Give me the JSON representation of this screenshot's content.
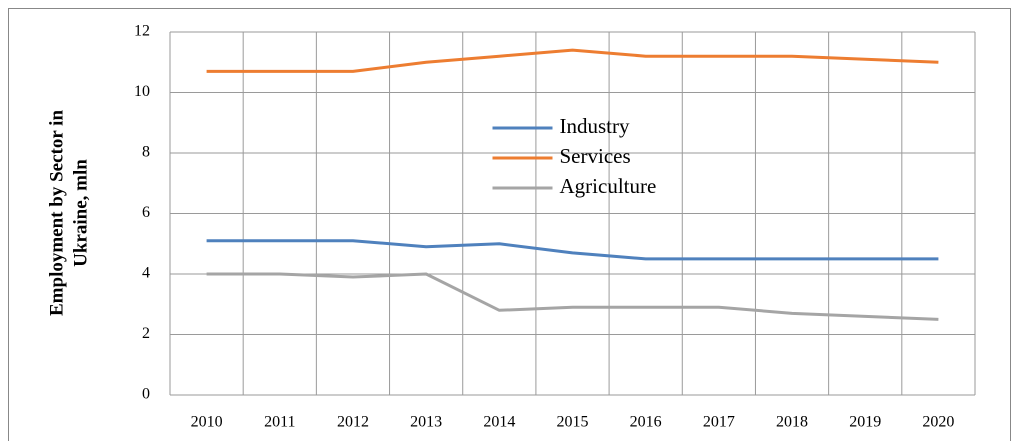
{
  "chart_data": {
    "type": "line",
    "ylabel": [
      "Employment by Sector in",
      "Ukraine, mln"
    ],
    "categories": [
      "2010",
      "2011",
      "2012",
      "2013",
      "2014",
      "2015",
      "2016",
      "2017",
      "2018",
      "2019",
      "2020"
    ],
    "series": [
      {
        "name": "Industry",
        "color": "#4f81bd",
        "values": [
          5.1,
          5.1,
          5.1,
          4.9,
          5.0,
          4.7,
          4.5,
          4.5,
          4.5,
          4.5,
          4.5
        ]
      },
      {
        "name": "Services",
        "color": "#ed7d31",
        "values": [
          10.7,
          10.7,
          10.7,
          11.0,
          11.2,
          11.4,
          11.2,
          11.2,
          11.2,
          11.1,
          11.0
        ]
      },
      {
        "name": "Agriculture",
        "color": "#a5a5a5",
        "values": [
          4.0,
          4.0,
          3.9,
          4.0,
          2.8,
          2.9,
          2.9,
          2.9,
          2.7,
          2.6,
          2.5
        ]
      }
    ],
    "ylim": [
      0,
      12
    ],
    "yticks": [
      0,
      2,
      4,
      6,
      8,
      10,
      12
    ],
    "grid": true,
    "legend": "center"
  }
}
